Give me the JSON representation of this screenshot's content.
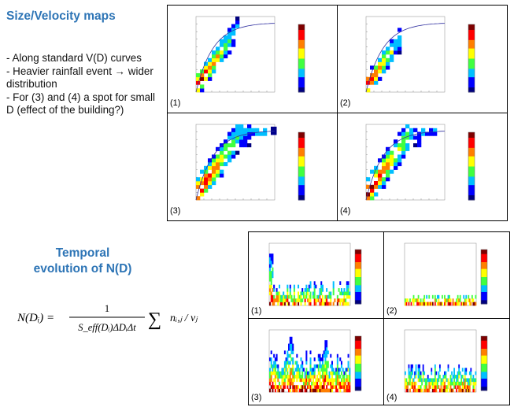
{
  "section1": {
    "title": "Size/Velocity maps",
    "bullets": [
      "- Along standard V(D) curves",
      "- Heavier rainfall event → wider distribution",
      "- For (3) and (4) a spot for small D (effect of the building?)"
    ]
  },
  "section2": {
    "title_line1": "Temporal",
    "title_line2": "evolution of N(D)"
  },
  "formula": {
    "lhs": "N(Dᵢ) =",
    "numerator": "1",
    "denominator": "S_eff(Dᵢ)ΔDᵢΔt",
    "sum_term": "nᵢ,ⱼ / vⱼ"
  },
  "panel_labels": [
    "(1)",
    "(2)",
    "(3)",
    "(4)"
  ],
  "colors": {
    "title": "#2e75b6",
    "colormap": [
      "#00007f",
      "#0000ff",
      "#00bfff",
      "#40ff40",
      "#ffff00",
      "#ff7f00",
      "#ff0000",
      "#7f0000"
    ],
    "curve": "#3030a0"
  }
}
